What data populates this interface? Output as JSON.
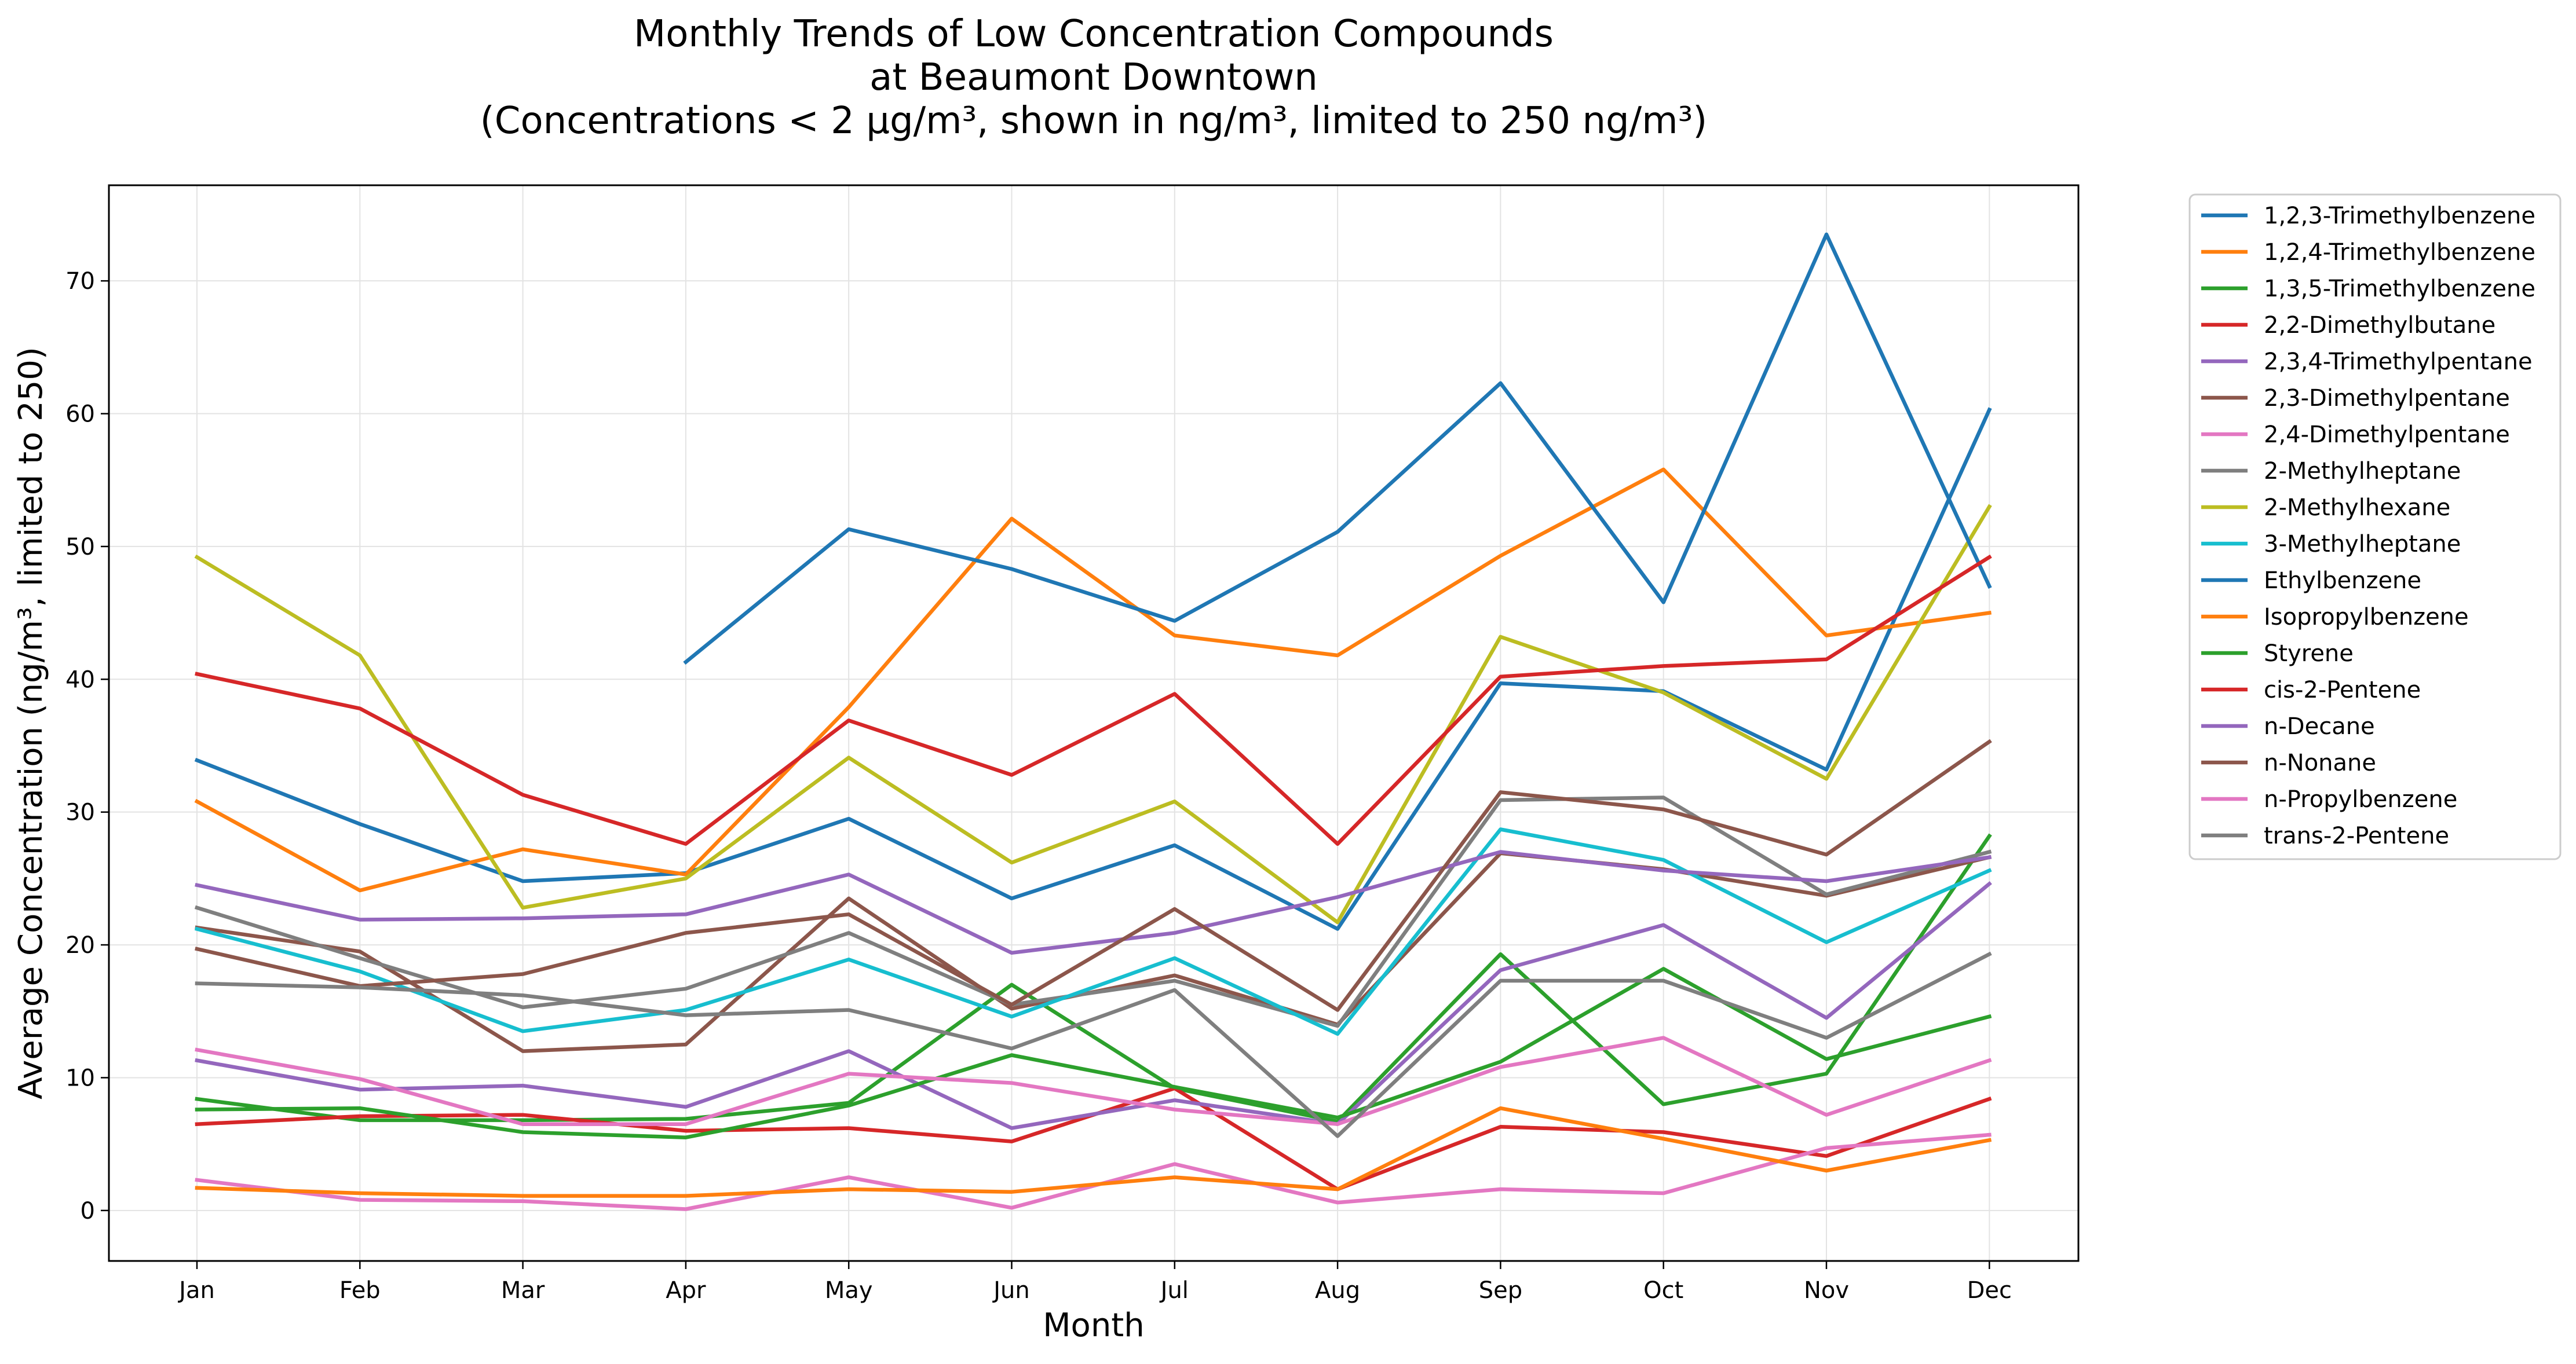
{
  "chart_data": {
    "type": "line",
    "title_lines": [
      "Monthly Trends of Low Concentration Compounds",
      "at Beaumont Downtown",
      "(Concentrations < 2 µg/m³, shown in ng/m³, limited to 250 ng/m³)"
    ],
    "xlabel": "Month",
    "ylabel": "Average Concentration (ng/m³, limited to 250)",
    "categories": [
      "Jan",
      "Feb",
      "Mar",
      "Apr",
      "May",
      "Jun",
      "Jul",
      "Aug",
      "Sep",
      "Oct",
      "Nov",
      "Dec"
    ],
    "ylim": [
      -3.8,
      77.2
    ],
    "yticks": [
      0,
      10,
      20,
      30,
      40,
      50,
      60,
      70
    ],
    "grid": true,
    "legend_position": "outside right",
    "series": [
      {
        "name": "1,2,3-Trimethylbenzene",
        "color": "#1f77b4",
        "values": [
          33.9,
          29.1,
          24.8,
          25.4,
          29.5,
          23.5,
          27.5,
          21.2,
          39.7,
          39.1,
          33.2,
          60.3
        ]
      },
      {
        "name": "1,2,4-Trimethylbenzene",
        "color": "#ff7f0e",
        "values": [
          30.8,
          24.1,
          27.2,
          25.3,
          37.9,
          52.1,
          43.3,
          41.8,
          49.3,
          55.8,
          43.3,
          45.0
        ]
      },
      {
        "name": "1,3,5-Trimethylbenzene",
        "color": "#2ca02c",
        "values": [
          8.4,
          6.8,
          6.8,
          6.9,
          8.1,
          17.0,
          9.2,
          6.7,
          19.3,
          8.0,
          10.3,
          28.2
        ]
      },
      {
        "name": "2,2-Dimethylbutane",
        "color": "#d62728",
        "values": [
          6.5,
          7.1,
          7.2,
          6.0,
          6.2,
          5.2,
          9.2,
          1.6,
          6.3,
          5.9,
          4.1,
          8.4
        ]
      },
      {
        "name": "2,3,4-Trimethylpentane",
        "color": "#9467bd",
        "values": [
          11.3,
          9.1,
          9.4,
          7.8,
          12.0,
          6.2,
          8.3,
          6.5,
          18.1,
          21.5,
          14.5,
          24.6
        ]
      },
      {
        "name": "2,3-Dimethylpentane",
        "color": "#8c564b",
        "values": [
          21.3,
          19.5,
          12.0,
          12.5,
          23.5,
          15.2,
          17.7,
          14.0,
          26.9,
          25.7,
          23.7,
          26.6
        ]
      },
      {
        "name": "2,4-Dimethylpentane",
        "color": "#e377c2",
        "values": [
          2.3,
          0.8,
          0.7,
          0.1,
          2.5,
          0.2,
          3.5,
          0.6,
          1.6,
          1.3,
          4.7,
          5.7
        ]
      },
      {
        "name": "2-Methylheptane",
        "color": "#7f7f7f",
        "values": [
          22.8,
          19.0,
          15.3,
          16.7,
          20.9,
          15.5,
          17.3,
          13.9,
          30.9,
          31.1,
          23.8,
          27.0
        ]
      },
      {
        "name": "2-Methylhexane",
        "color": "#bcbd22",
        "values": [
          49.2,
          41.8,
          22.8,
          25.0,
          34.1,
          26.2,
          30.8,
          21.7,
          43.2,
          39.0,
          32.5,
          53.0
        ]
      },
      {
        "name": "3-Methylheptane",
        "color": "#17becf",
        "values": [
          21.2,
          18.0,
          13.5,
          15.1,
          18.9,
          14.6,
          19.0,
          13.3,
          28.7,
          26.4,
          20.2,
          25.6
        ]
      },
      {
        "name": "Ethylbenzene",
        "color": "#1f77b4",
        "values": [
          null,
          null,
          null,
          41.3,
          51.3,
          48.3,
          44.4,
          51.1,
          62.3,
          45.8,
          73.5,
          47.0
        ]
      },
      {
        "name": "Isopropylbenzene",
        "color": "#ff7f0e",
        "values": [
          1.7,
          1.3,
          1.1,
          1.1,
          1.6,
          1.4,
          2.5,
          1.6,
          7.7,
          5.4,
          3.0,
          5.3
        ]
      },
      {
        "name": "Styrene",
        "color": "#2ca02c",
        "values": [
          7.6,
          7.7,
          5.9,
          5.5,
          7.9,
          11.7,
          9.3,
          7.0,
          11.2,
          18.2,
          11.4,
          14.6
        ]
      },
      {
        "name": "cis-2-Pentene",
        "color": "#d62728",
        "values": [
          40.4,
          37.8,
          31.3,
          27.6,
          36.9,
          32.8,
          38.9,
          27.6,
          40.2,
          41.0,
          41.5,
          49.2
        ]
      },
      {
        "name": "n-Decane",
        "color": "#9467bd",
        "values": [
          24.5,
          21.9,
          22.0,
          22.3,
          25.3,
          19.4,
          20.9,
          23.6,
          27.0,
          25.6,
          24.8,
          26.6
        ]
      },
      {
        "name": "n-Nonane",
        "color": "#8c564b",
        "values": [
          19.7,
          16.9,
          17.8,
          20.9,
          22.3,
          15.5,
          22.7,
          15.1,
          31.5,
          30.2,
          26.8,
          35.3
        ]
      },
      {
        "name": "n-Propylbenzene",
        "color": "#e377c2",
        "values": [
          12.1,
          9.9,
          6.5,
          6.5,
          10.3,
          9.6,
          7.6,
          6.5,
          10.8,
          13.0,
          7.2,
          11.3
        ]
      },
      {
        "name": "trans-2-Pentene",
        "color": "#7f7f7f",
        "values": [
          17.1,
          16.8,
          16.2,
          14.7,
          15.1,
          12.2,
          16.6,
          5.6,
          17.3,
          17.3,
          13.0,
          19.3
        ]
      }
    ]
  }
}
